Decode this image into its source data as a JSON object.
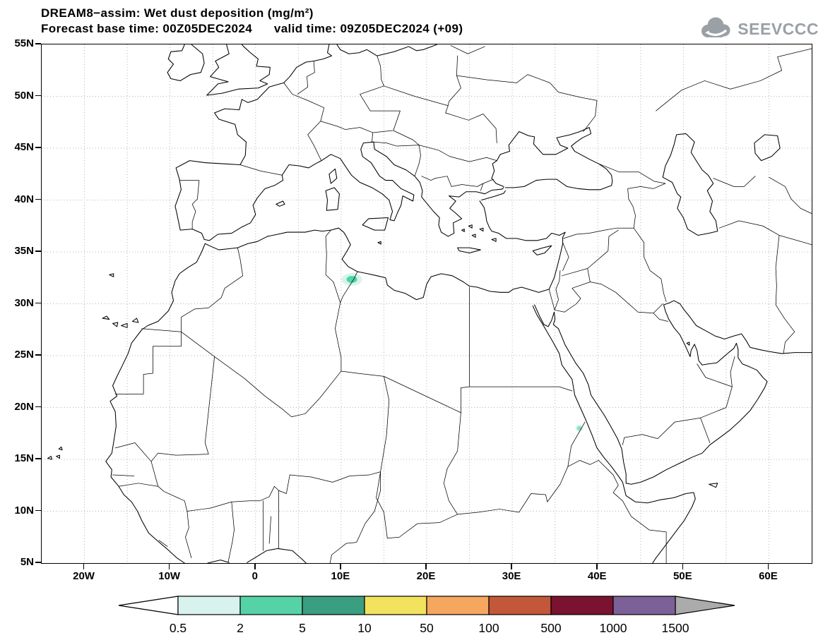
{
  "header": {
    "line1": "DREAM8−assim: Wet dust deposition (mg/m²)",
    "line2": "Forecast base time: 00Z05DEC2024      valid time: 09Z05DEC2024 (+09)",
    "model": "DREAM8−assim",
    "variable": "Wet dust deposition",
    "units": "mg/m²",
    "forecast_base_time": "00Z05DEC2024",
    "valid_time": "09Z05DEC2024",
    "forecast_offset": "+09"
  },
  "logo": {
    "text": "SEEVCCC"
  },
  "map": {
    "extent": {
      "lon_min": -25,
      "lon_max": 65,
      "lat_min": 5,
      "lat_max": 55
    },
    "grid_step_deg": 5,
    "lat_ticks": [
      {
        "value": 55,
        "label": "55N"
      },
      {
        "value": 50,
        "label": "50N"
      },
      {
        "value": 45,
        "label": "45N"
      },
      {
        "value": 40,
        "label": "40N"
      },
      {
        "value": 35,
        "label": "35N"
      },
      {
        "value": 30,
        "label": "30N"
      },
      {
        "value": 25,
        "label": "25N"
      },
      {
        "value": 20,
        "label": "20N"
      },
      {
        "value": 15,
        "label": "15N"
      },
      {
        "value": 10,
        "label": "10N"
      },
      {
        "value": 5,
        "label": "5N"
      }
    ],
    "lon_ticks": [
      {
        "value": -20,
        "label": "20W"
      },
      {
        "value": -10,
        "label": "10W"
      },
      {
        "value": 0,
        "label": "0"
      },
      {
        "value": 10,
        "label": "10E"
      },
      {
        "value": 20,
        "label": "20E"
      },
      {
        "value": 30,
        "label": "30E"
      },
      {
        "value": 40,
        "label": "40E"
      },
      {
        "value": 50,
        "label": "50E"
      },
      {
        "value": 60,
        "label": "60E"
      }
    ]
  },
  "chart_data": {
    "type": "heatmap",
    "subtype": "filled-contour-geographic-map",
    "title": "DREAM8−assim: Wet dust deposition (mg/m²)",
    "units": "mg/m²",
    "forecast_base_time": "00Z05DEC2024",
    "valid_time": "09Z05DEC2024",
    "forecast_hour": "+09",
    "extent": {
      "lon": [
        -25,
        65
      ],
      "lat": [
        5,
        55
      ]
    },
    "grid": "dotted, every 5 degrees",
    "colorbar": {
      "levels": [
        0.5,
        2,
        5,
        10,
        50,
        100,
        500,
        1000,
        1500
      ],
      "tick_labels": [
        "0.5",
        "2",
        "5",
        "10",
        "50",
        "100",
        "500",
        "1000",
        "1500"
      ],
      "segment_colors": [
        "#d8f3ee",
        "#55d3a7",
        "#3a9e80",
        "#f2e25e",
        "#f5a75f",
        "#c2573a",
        "#7a1230",
        "#7c6199"
      ],
      "under_color": "#ffffff",
      "over_color": "#ababab"
    },
    "deposition_areas": [
      {
        "name": "tunisia-libya-border-patch",
        "lon": 11.25,
        "lat": 32.35,
        "value_range": "2–5 mg/m²",
        "color": "#50d6a5",
        "halo_color": "#d8f3ec",
        "rx": 0.62,
        "ry": 0.34,
        "halo_rx": 1.2,
        "halo_ry": 0.6
      },
      {
        "name": "red-sea-eritrea-coast-patch",
        "lon": 37.85,
        "lat": 18.0,
        "value_range": "0.5–2 mg/m²",
        "color": "#86e2c5",
        "halo_color": "#d8f3ec",
        "rx": 0.28,
        "ry": 0.2,
        "halo_rx": 0.45,
        "halo_ry": 0.33
      }
    ]
  }
}
